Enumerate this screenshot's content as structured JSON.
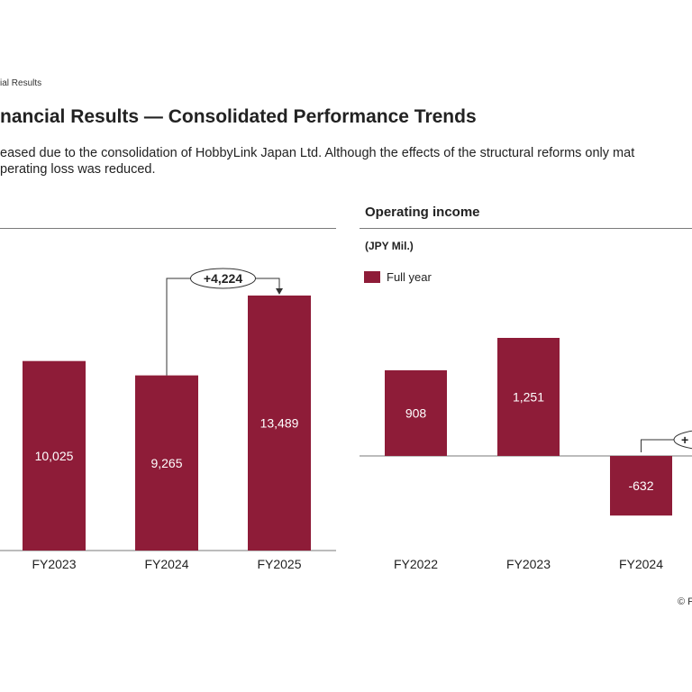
{
  "header": {
    "breadcrumb": "ial Results",
    "title": "nancial Results — Consolidated Performance Trends",
    "summary_line1": "eased due to the consolidation of HobbyLink Japan Ltd. Although the effects of the structural reforms only mat",
    "summary_line2": "perating loss was reduced."
  },
  "footer": {
    "copyright": "© F"
  },
  "colors": {
    "bar": "#8e1c38",
    "axis": "#7a7a7a",
    "text": "#222222"
  },
  "chart_data": [
    {
      "type": "bar",
      "title": "",
      "categories": [
        "FY2023",
        "FY2024",
        "FY2025"
      ],
      "series": [
        {
          "values": [
            10025,
            9265,
            13489
          ]
        }
      ],
      "data_labels": [
        "10,025",
        "9,265",
        "13,489"
      ],
      "annotations": [
        {
          "text": "+4,224",
          "from": "FY2024",
          "to": "FY2025"
        }
      ]
    },
    {
      "type": "bar",
      "title": "Operating income",
      "unit_label": "(JPY Mil.)",
      "legend": {
        "position": "top-left",
        "entries": [
          "Full year"
        ]
      },
      "categories": [
        "FY2022",
        "FY2023",
        "FY2024"
      ],
      "series": [
        {
          "name": "Full year",
          "values": [
            908,
            1251,
            -632
          ]
        }
      ],
      "data_labels": [
        "908",
        "1,251",
        "-632"
      ],
      "annotations": [
        {
          "text": "+",
          "from": "FY2024"
        }
      ]
    }
  ]
}
